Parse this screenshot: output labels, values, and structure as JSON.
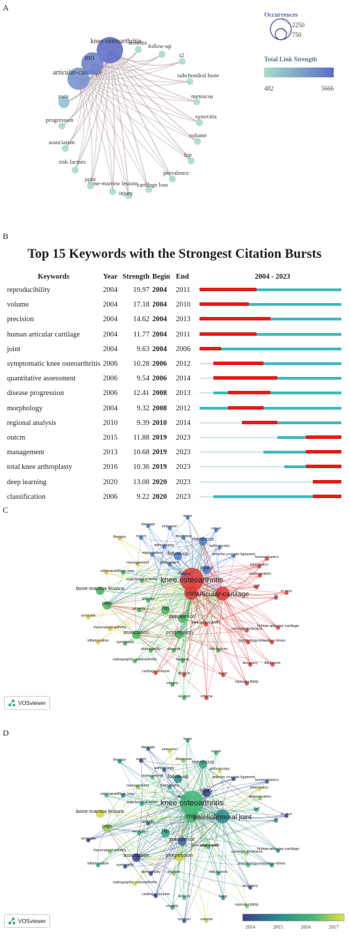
{
  "panels": {
    "a": "A",
    "b": "B",
    "c": "C",
    "d": "D"
  },
  "panel_a": {
    "legend": {
      "occurrences_title": "Occurrences",
      "occ_high": "2250",
      "occ_low": "750",
      "tls_title": "Total Link Strength",
      "tls_min": "482",
      "tls_max": "5666",
      "color_low": "#9fd8cc",
      "color_high": "#5a6fc6"
    },
    "nodes": [
      {
        "label": "knee osteoarthritis",
        "size": 4,
        "color": "#5f6fc6"
      },
      {
        "label": "arthritis",
        "size": 1,
        "color": "#a8dccd"
      },
      {
        "label": "follow-up",
        "size": 1,
        "color": "#a8dccd"
      },
      {
        "label": "t2",
        "size": 1,
        "color": "#a8dccd"
      },
      {
        "label": "subchondral bone",
        "size": 1,
        "color": "#a8dccd"
      },
      {
        "label": "meniscus",
        "size": 1,
        "color": "#a8dccd"
      },
      {
        "label": "synovitis",
        "size": 1,
        "color": "#a8dccd"
      },
      {
        "label": "volume",
        "size": 1,
        "color": "#a8dccd"
      },
      {
        "label": "hip",
        "size": 1,
        "color": "#a8dccd"
      },
      {
        "label": "prevalence",
        "size": 1,
        "color": "#a8dccd"
      },
      {
        "label": "cartilage loss",
        "size": 1,
        "color": "#a8dccd"
      },
      {
        "label": "injury",
        "size": 1,
        "color": "#a8dccd"
      },
      {
        "label": "bone-marrow lesions",
        "size": 1,
        "color": "#a8dccd"
      },
      {
        "label": "joint",
        "size": 1,
        "color": "#a8dccd"
      },
      {
        "label": "risk factors",
        "size": 1,
        "color": "#a8dccd"
      },
      {
        "label": "association",
        "size": 1,
        "color": "#a8dccd"
      },
      {
        "label": "progression",
        "size": 1,
        "color": "#a8dccd"
      },
      {
        "label": "pain",
        "size": 2,
        "color": "#8cc3d4"
      },
      {
        "label": "articular-cartilage",
        "size": 3,
        "color": "#7a94d0"
      },
      {
        "label": "mri",
        "size": 3,
        "color": "#6b82cc"
      }
    ]
  },
  "chart_data": [
    {
      "type": "table",
      "title": "Top 15 Keywords with the Strongest Citation Bursts",
      "columns": [
        "Keywords",
        "Year",
        "Strength",
        "Begin",
        "End",
        "2004 - 2023"
      ],
      "range": [
        2004,
        2023
      ],
      "rows": [
        {
          "keyword": "reproducibility",
          "year": 2004,
          "strength": "19.97",
          "begin": 2004,
          "end": 2011
        },
        {
          "keyword": "volume",
          "year": 2004,
          "strength": "17.18",
          "begin": 2004,
          "end": 2010
        },
        {
          "keyword": "precision",
          "year": 2004,
          "strength": "14.62",
          "begin": 2004,
          "end": 2013
        },
        {
          "keyword": "human articular cartilage",
          "year": 2004,
          "strength": "11.77",
          "begin": 2004,
          "end": 2011
        },
        {
          "keyword": "joint",
          "year": 2004,
          "strength": "9.63",
          "begin": 2004,
          "end": 2006
        },
        {
          "keyword": "symptomatic knee osteoarthritis",
          "year": 2006,
          "strength": "10.28",
          "begin": 2006,
          "end": 2012
        },
        {
          "keyword": "quantitative assessment",
          "year": 2006,
          "strength": "9.54",
          "begin": 2006,
          "end": 2014
        },
        {
          "keyword": "disease progression",
          "year": 2006,
          "strength": "12.41",
          "begin": 2008,
          "end": 2013
        },
        {
          "keyword": "morphology",
          "year": 2004,
          "strength": "9.32",
          "begin": 2008,
          "end": 2012
        },
        {
          "keyword": "regional analysis",
          "year": 2010,
          "strength": "9.39",
          "begin": 2010,
          "end": 2014
        },
        {
          "keyword": "outcm",
          "year": 2015,
          "strength": "11.88",
          "begin": 2019,
          "end": 2023
        },
        {
          "keyword": "management",
          "year": 2013,
          "strength": "10.68",
          "begin": 2019,
          "end": 2023
        },
        {
          "keyword": "total knee arthroplasty",
          "year": 2016,
          "strength": "10.36",
          "begin": 2019,
          "end": 2023
        },
        {
          "keyword": "deep learning",
          "year": 2020,
          "strength": "13.08",
          "begin": 2020,
          "end": 2023
        },
        {
          "keyword": "classification",
          "year": 2006,
          "strength": "9.22",
          "begin": 2020,
          "end": 2023
        }
      ]
    }
  ],
  "panel_c": {
    "logo": "VOSviewer",
    "nodes": [
      {
        "label": "knee osteoarthritis",
        "c": "red",
        "big": 3
      },
      {
        "label": "mri",
        "c": "red",
        "big": 2
      },
      {
        "label": "articular-cartilage",
        "c": "red",
        "big": 2
      },
      {
        "label": "tears",
        "c": "blue"
      },
      {
        "label": "damage",
        "c": "blue"
      },
      {
        "label": "extrusion",
        "c": "blue"
      },
      {
        "label": "repair",
        "c": "blue"
      },
      {
        "label": "therapy",
        "c": "yellow"
      },
      {
        "label": "outcm",
        "c": "blue"
      },
      {
        "label": "diagnosis",
        "c": "blue"
      },
      {
        "label": "meniscus",
        "c": "blue",
        "big": 1
      },
      {
        "label": "arthroplasty",
        "c": "blue"
      },
      {
        "label": "arthroscopy",
        "c": "blue"
      },
      {
        "label": "replacement",
        "c": "blue"
      },
      {
        "label": "follow-up",
        "c": "blue",
        "big": 1
      },
      {
        "label": "anterior cruciate ligament",
        "c": "blue"
      },
      {
        "label": "management",
        "c": "yellow"
      },
      {
        "label": "biomarkers",
        "c": "blue"
      },
      {
        "label": "kinematics",
        "c": "red"
      },
      {
        "label": "biomechanics",
        "c": "red"
      },
      {
        "label": "edema",
        "c": "yellow"
      },
      {
        "label": "cartilage loss",
        "c": "green"
      },
      {
        "label": "injury",
        "c": "blue",
        "big": 1
      },
      {
        "label": "degeneration",
        "c": "red"
      },
      {
        "label": "subchondral bone",
        "c": "green"
      },
      {
        "label": "imaging",
        "c": "blue"
      },
      {
        "label": "bone-marrow lesions",
        "c": "green",
        "big": 1
      },
      {
        "label": "gait",
        "c": "red"
      },
      {
        "label": "in-vivo",
        "c": "red"
      },
      {
        "label": "arthritis",
        "c": "green"
      },
      {
        "label": "pain",
        "c": "green",
        "big": 1
      },
      {
        "label": "severity",
        "c": "green"
      },
      {
        "label": "hip",
        "c": "green",
        "big": 1
      },
      {
        "label": "prevalence",
        "c": "green",
        "big": 1
      },
      {
        "label": "t2",
        "c": "red"
      },
      {
        "label": "synovitis",
        "c": "yellow"
      },
      {
        "label": "joint space width",
        "c": "red"
      },
      {
        "label": "rheumatoid-arthritis",
        "c": "yellow"
      },
      {
        "label": "cartilage thickness",
        "c": "red"
      },
      {
        "label": "human articular-cartilage",
        "c": "red"
      },
      {
        "label": "association",
        "c": "green",
        "big": 1
      },
      {
        "label": "progression",
        "c": "green",
        "big": 1
      },
      {
        "label": "inflammation",
        "c": "yellow"
      },
      {
        "label": "symptoms",
        "c": "green"
      },
      {
        "label": "morphology",
        "c": "red"
      },
      {
        "label": "relaxation-times",
        "c": "red"
      },
      {
        "label": "abnormality",
        "c": "green"
      },
      {
        "label": "disease",
        "c": "green"
      },
      {
        "label": "risk-factors",
        "c": "green"
      },
      {
        "label": "radiographic osteoarthritis",
        "c": "green"
      },
      {
        "label": "features",
        "c": "green"
      },
      {
        "label": "accuracy",
        "c": "red"
      },
      {
        "label": "thickness",
        "c": "red"
      },
      {
        "label": "defects",
        "c": "red"
      },
      {
        "label": "bone",
        "c": "red"
      },
      {
        "label": "cartilage volume",
        "c": "red"
      },
      {
        "label": "reproducibility",
        "c": "red"
      },
      {
        "label": "obesity",
        "c": "green"
      },
      {
        "label": "women",
        "c": "green"
      },
      {
        "label": "volume",
        "c": "red"
      }
    ]
  },
  "panel_d": {
    "logo": "VOSviewer",
    "colorbar": {
      "ticks": [
        "2014",
        "2015",
        "2016",
        "2017"
      ],
      "colors": [
        "#3b4a8c",
        "#2a8c8c",
        "#47b878",
        "#e2e23a"
      ]
    },
    "labels": [
      "tears",
      "damage",
      "extrusion",
      "repair",
      "therapy",
      "outcm",
      "diagnosis",
      "meniscus",
      "arthroplasty",
      "arthroscopy",
      "replacement",
      "follow-up",
      "anterior cruciate ligament",
      "management",
      "biomarkers",
      "biomechanics",
      "kinematics",
      "edema",
      "cartilage loss",
      "injury",
      "degeneration",
      "subchondral bone",
      "imaging",
      "bone-marrow lesions",
      "gait",
      "knee osteoarthritis",
      "in-vivo",
      "pain",
      "severity",
      "arthritis",
      "mri",
      "patellofemoral joint",
      "t2",
      "synovitis",
      "rheumatoid-arthritis",
      "hip",
      "prevalence",
      "joint space width",
      "alignment",
      "human articular-cartilage",
      "association",
      "cartilage thickness",
      "inflammation",
      "symptoms",
      "progression",
      "morphology",
      "relaxation-times",
      "abnormality",
      "disease",
      "risk-factors",
      "accuracy",
      "radiographic osteoarthritis",
      "defects",
      "bone",
      "cartilage volume",
      "reproducibility",
      "obesity",
      "women",
      "volume"
    ]
  }
}
